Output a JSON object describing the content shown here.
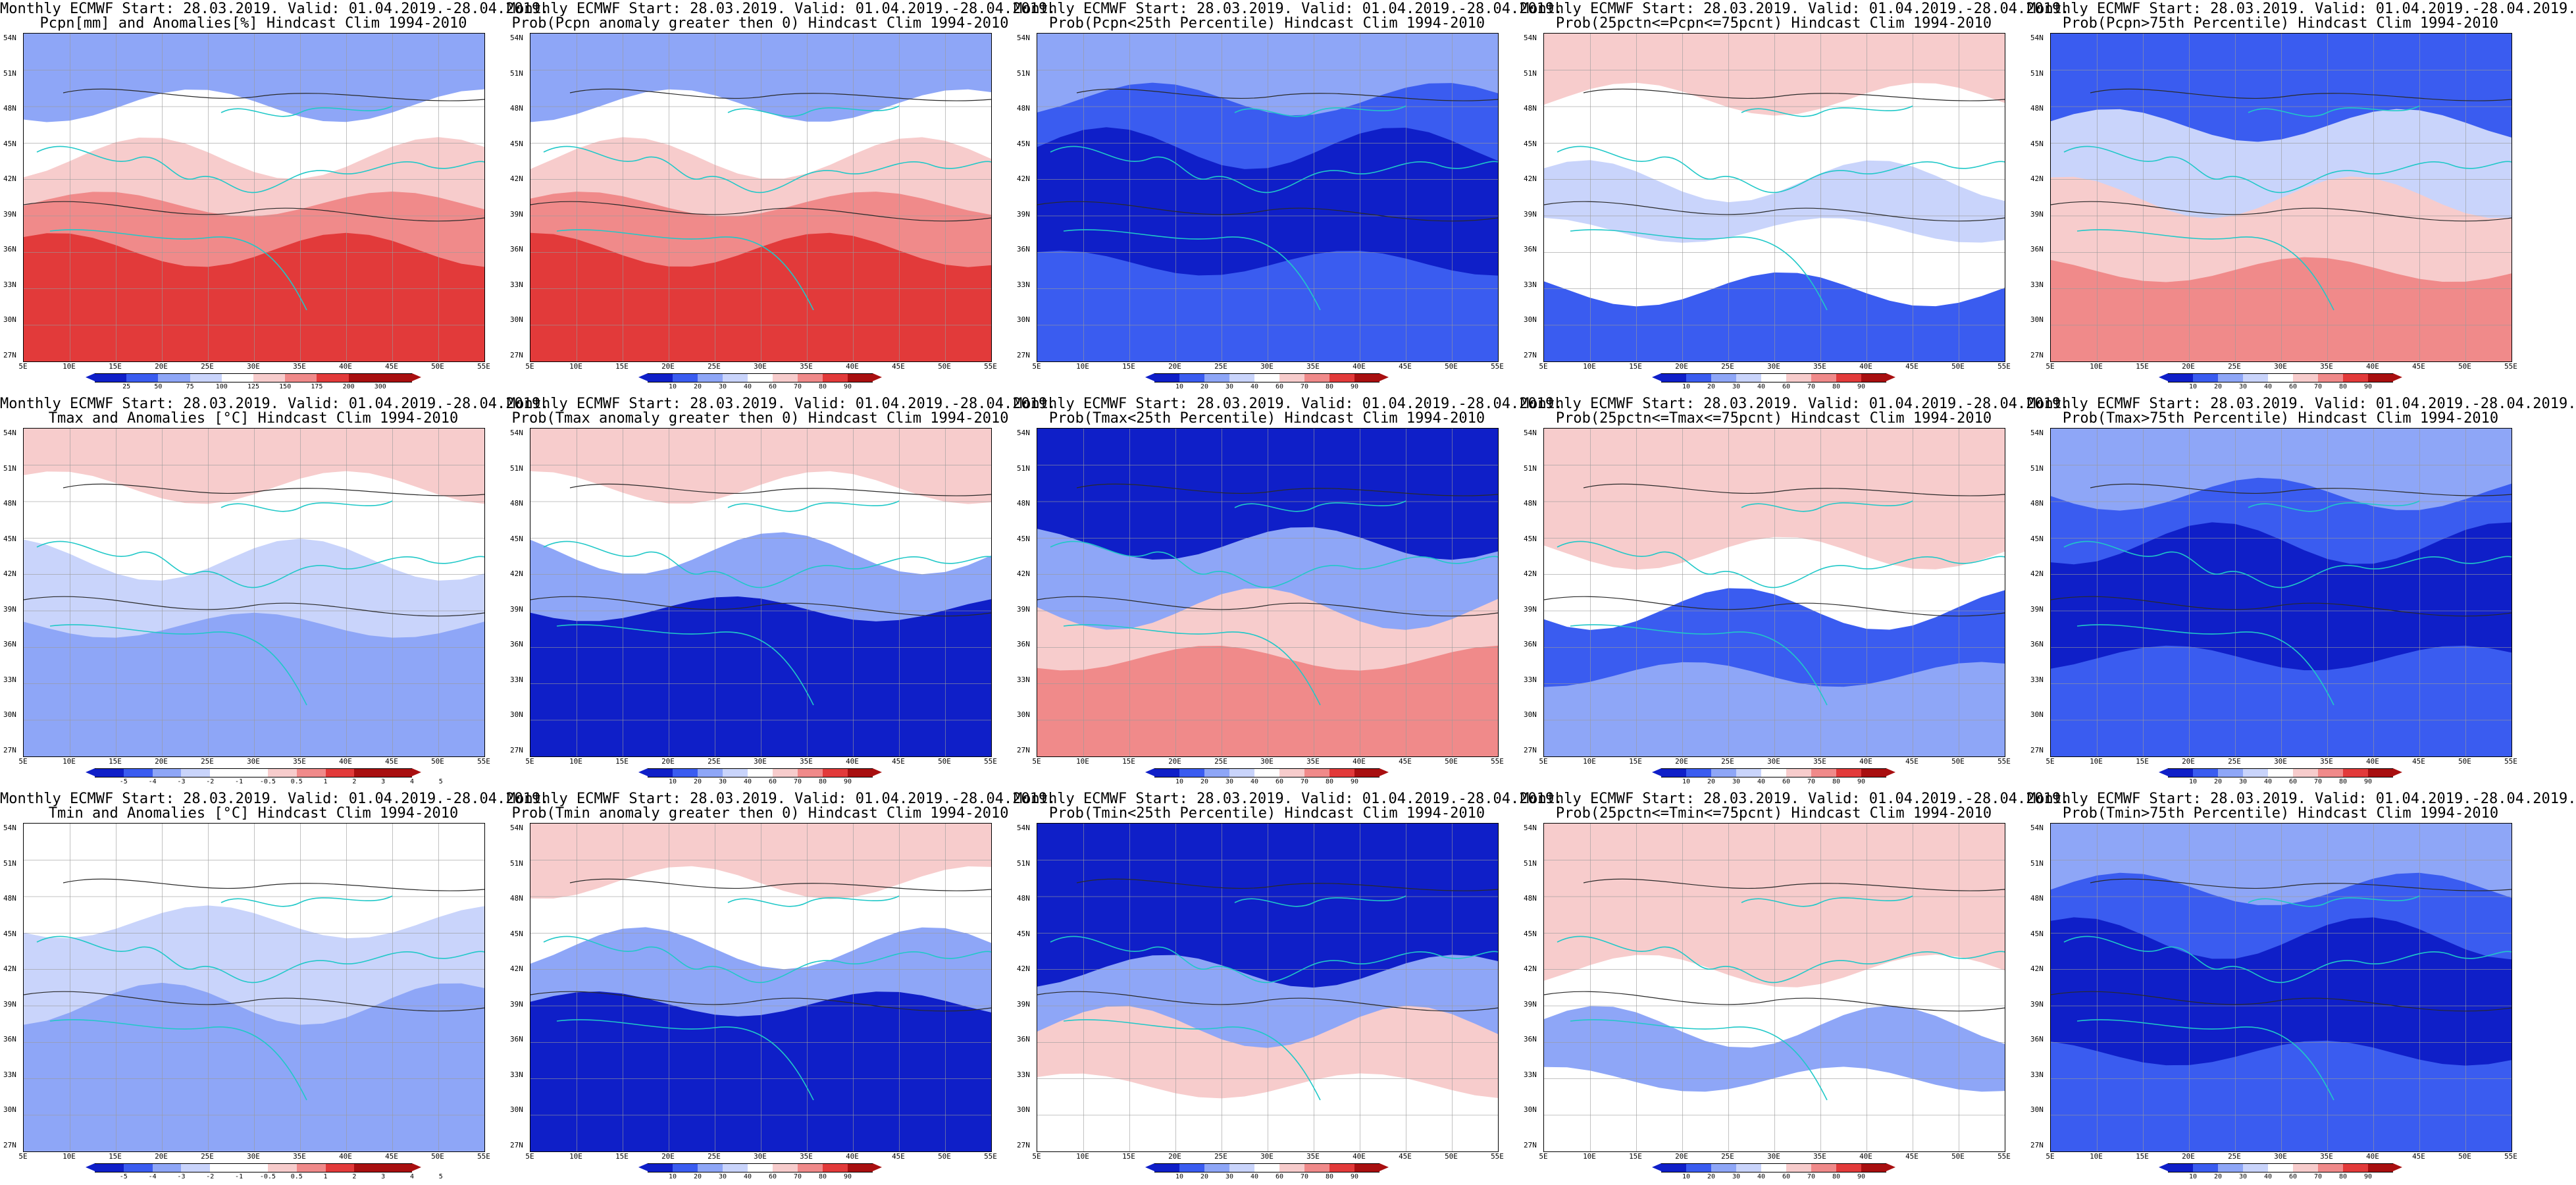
{
  "x_labels": [
    "5E",
    "10E",
    "15E",
    "20E",
    "25E",
    "30E",
    "35E",
    "40E",
    "45E",
    "50E",
    "55E"
  ],
  "y_labels": [
    "54N",
    "51N",
    "48N",
    "45N",
    "42N",
    "39N",
    "36N",
    "33N",
    "30N",
    "27N"
  ],
  "colors": {
    "frame": "#000000",
    "coast": "#20c8c8",
    "contour": "#2a2a2a",
    "blue_dark": "#0f1fc8",
    "blue_mid": "#3a5cf0",
    "blue_light": "#8ea6f7",
    "blue_pale": "#c9d4fb",
    "white": "#ffffff",
    "red_pale": "#f7cccc",
    "red_light": "#f08a8a",
    "red_mid": "#e23a3a",
    "red_dark": "#a80f10"
  },
  "panels": [
    {
      "line1": "Monthly ECMWF Start: 28.03.2019. Valid: 01.04.2019.-28.04.2019.",
      "line2": "Pcpn[mm] and Anomalies[%] Hindcast Clim 1994-2010",
      "scheme": "redwet",
      "cbar": "anom_pcpn",
      "labels": [
        "25",
        "50",
        "75",
        "100",
        "125",
        "150",
        "175",
        "200",
        "300"
      ]
    },
    {
      "line1": "Monthly ECMWF Start: 28.03.2019. Valid: 01.04.2019.-28.04.2019.",
      "line2": "Prob(Pcpn anomaly greater then 0) Hindcast Clim 1994-2010",
      "scheme": "redwet",
      "cbar": "prob",
      "labels": [
        "10",
        "20",
        "30",
        "40",
        "60",
        "70",
        "80",
        "90"
      ]
    },
    {
      "line1": "Monthly ECMWF Start: 28.03.2019. Valid: 01.04.2019.-28.04.2019.",
      "line2": "Prob(Pcpn<25th Percentile) Hindcast Clim 1994-2010",
      "scheme": "bluemost",
      "cbar": "prob",
      "labels": [
        "10",
        "20",
        "30",
        "40",
        "60",
        "70",
        "80",
        "90"
      ]
    },
    {
      "line1": "Monthly ECMWF Start: 28.03.2019. Valid: 01.04.2019.-28.04.2019.",
      "line2": "Prob(25pctn<=Pcpn<=75pcnt) Hindcast Clim 1994-2010",
      "scheme": "mixed",
      "cbar": "prob",
      "labels": [
        "10",
        "20",
        "30",
        "40",
        "60",
        "70",
        "80",
        "90"
      ]
    },
    {
      "line1": "Monthly ECMWF Start: 28.03.2019. Valid: 01.04.2019.-28.04.2019.",
      "line2": "Prob(Pcpn>75th Percentile) Hindcast Clim 1994-2010",
      "scheme": "bluetopred",
      "cbar": "prob",
      "labels": [
        "10",
        "20",
        "30",
        "40",
        "60",
        "70",
        "80",
        "90"
      ]
    },
    {
      "line1": "Monthly ECMWF Start: 28.03.2019. Valid: 01.04.2019.-28.04.2019.",
      "line2": "Tmax and Anomalies [°C] Hindcast Clim 1994-2010",
      "scheme": "tanom",
      "cbar": "anom_t",
      "labels": [
        "-5",
        "-4",
        "-3",
        "-2",
        "-1",
        "-0.5",
        "0.5",
        "1",
        "2",
        "3",
        "4",
        "5"
      ]
    },
    {
      "line1": "Monthly ECMWF Start: 28.03.2019. Valid: 01.04.2019.-28.04.2019.",
      "line2": "Prob(Tmax anomaly greater then 0) Hindcast Clim 1994-2010",
      "scheme": "bluesouth",
      "cbar": "prob",
      "labels": [
        "10",
        "20",
        "30",
        "40",
        "60",
        "70",
        "80",
        "90"
      ]
    },
    {
      "line1": "Monthly ECMWF Start: 28.03.2019. Valid: 01.04.2019.-28.04.2019.",
      "line2": "Prob(Tmax<25th Percentile) Hindcast Clim 1994-2010",
      "scheme": "redsouth",
      "cbar": "prob",
      "labels": [
        "10",
        "20",
        "30",
        "40",
        "60",
        "70",
        "80",
        "90"
      ]
    },
    {
      "line1": "Monthly ECMWF Start: 28.03.2019. Valid: 01.04.2019.-28.04.2019.",
      "line2": "Prob(25pctn<=Tmax<=75pcnt) Hindcast Clim 1994-2010",
      "scheme": "mixed2",
      "cbar": "prob",
      "labels": [
        "10",
        "20",
        "30",
        "40",
        "60",
        "70",
        "80",
        "90"
      ]
    },
    {
      "line1": "Monthly ECMWF Start: 28.03.2019. Valid: 01.04.2019.-28.04.2019.",
      "line2": "Prob(Tmax>75th Percentile) Hindcast Clim 1994-2010",
      "scheme": "bluemost",
      "cbar": "prob",
      "labels": [
        "10",
        "20",
        "30",
        "40",
        "60",
        "70",
        "80",
        "90"
      ]
    },
    {
      "line1": "Monthly ECMWF Start: 28.03.2019. Valid: 01.04.2019.-28.04.2019.",
      "line2": "Tmin and Anomalies [°C] Hindcast Clim 1994-2010",
      "scheme": "tanom2",
      "cbar": "anom_t",
      "labels": [
        "-5",
        "-4",
        "-3",
        "-2",
        "-1",
        "-0.5",
        "0.5",
        "1",
        "2",
        "3",
        "4",
        "5"
      ]
    },
    {
      "line1": "Monthly ECMWF Start: 28.03.2019. Valid: 01.04.2019.-28.04.2019.",
      "line2": "Prob(Tmin anomaly greater then 0) Hindcast Clim 1994-2010",
      "scheme": "bluesouth",
      "cbar": "prob",
      "labels": [
        "10",
        "20",
        "30",
        "40",
        "60",
        "70",
        "80",
        "90"
      ]
    },
    {
      "line1": "Monthly ECMWF Start: 28.03.2019. Valid: 01.04.2019.-28.04.2019.",
      "line2": "Prob(Tmin<25th Percentile) Hindcast Clim 1994-2010",
      "scheme": "redsouth2",
      "cbar": "prob",
      "labels": [
        "10",
        "20",
        "30",
        "40",
        "60",
        "70",
        "80",
        "90"
      ]
    },
    {
      "line1": "Monthly ECMWF Start: 28.03.2019. Valid: 01.04.2019.-28.04.2019.",
      "line2": "Prob(25pctn<=Tmin<=75pcnt) Hindcast Clim 1994-2010",
      "scheme": "mixed3",
      "cbar": "prob",
      "labels": [
        "10",
        "20",
        "30",
        "40",
        "60",
        "70",
        "80",
        "90"
      ]
    },
    {
      "line1": "Monthly ECMWF Start: 28.03.2019. Valid: 01.04.2019.-28.04.2019.",
      "line2": "Prob(Tmin>75th Percentile) Hindcast Clim 1994-2010",
      "scheme": "bluemost",
      "cbar": "prob",
      "labels": [
        "10",
        "20",
        "30",
        "40",
        "60",
        "70",
        "80",
        "90"
      ]
    }
  ]
}
